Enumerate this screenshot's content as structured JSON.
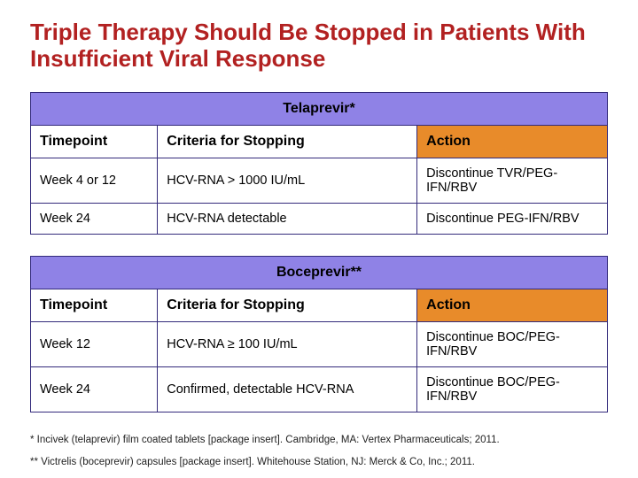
{
  "title": "Triple Therapy Should Be Stopped in Patients With Insufficient Viral Response",
  "colors": {
    "title": "#b22121",
    "table_border": "#332a7b",
    "drug_header_bg": "#8f82e6",
    "action_header_bg": "#e88b2a",
    "background": "#ffffff"
  },
  "tables": [
    {
      "drug": "Telaprevir*",
      "columns": [
        "Timepoint",
        "Criteria for Stopping",
        "Action"
      ],
      "rows": [
        [
          "Week 4 or 12",
          "HCV-RNA > 1000 IU/mL",
          "Discontinue TVR/PEG-IFN/RBV"
        ],
        [
          "Week 24",
          "HCV-RNA detectable",
          "Discontinue PEG-IFN/RBV"
        ]
      ]
    },
    {
      "drug": "Boceprevir**",
      "columns": [
        "Timepoint",
        "Criteria for Stopping",
        "Action"
      ],
      "rows": [
        [
          "Week 12",
          "HCV-RNA ≥ 100 IU/mL",
          "Discontinue BOC/PEG-IFN/RBV"
        ],
        [
          "Week 24",
          "Confirmed, detectable HCV-RNA",
          "Discontinue BOC/PEG-IFN/RBV"
        ]
      ]
    }
  ],
  "footnotes": [
    "* Incivek (telaprevir) film coated tablets [package insert]. Cambridge, MA: Vertex Pharmaceuticals; 2011.",
    "** Victrelis (boceprevir) capsules [package insert]. Whitehouse Station, NJ: Merck & Co, Inc.; 2011."
  ]
}
